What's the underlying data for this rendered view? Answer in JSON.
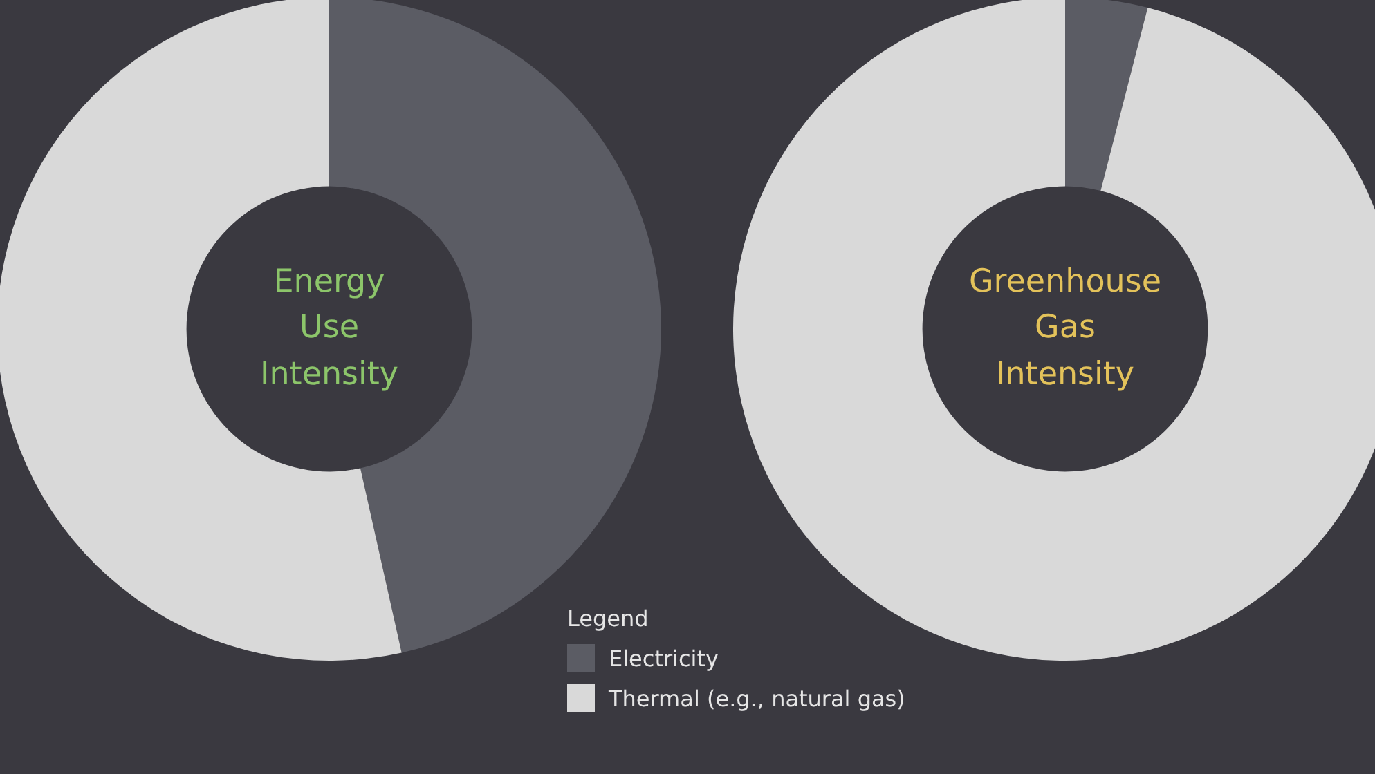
{
  "chart_data": {
    "type": "donut",
    "categories": [
      "Electricity",
      "Thermal (e.g., natural gas)"
    ],
    "colors": [
      "#5b5c64",
      "#d9d9d9"
    ],
    "legend": "bottom",
    "legend_title": "Legend",
    "series": [
      {
        "name": "Energy Use Intensity",
        "values": [
          46.5,
          53.5
        ]
      },
      {
        "name": "Greenhouse Gas Intensity",
        "values": [
          4,
          96
        ]
      }
    ]
  }
}
